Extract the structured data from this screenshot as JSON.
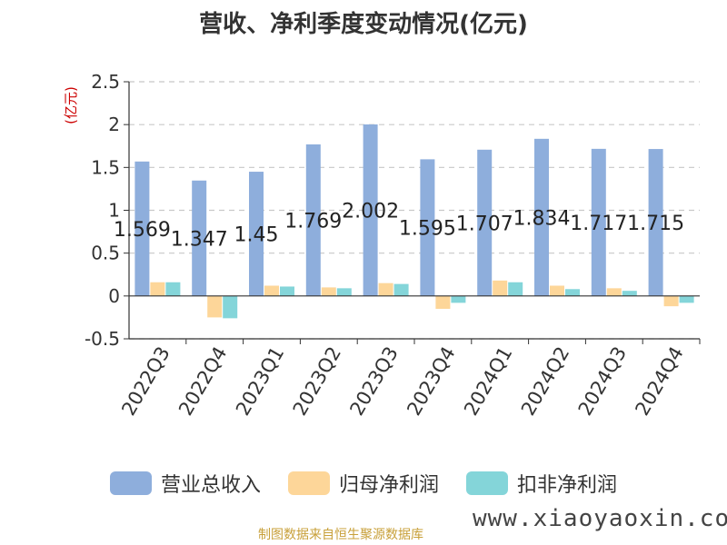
{
  "chart_data": {
    "type": "bar",
    "title": "营收、净利季度变动情况(亿元)",
    "ylabel": "(亿元)",
    "ylim": [
      -0.5,
      2.5
    ],
    "yticks": [
      2.5,
      2,
      1.5,
      1,
      0.5,
      0,
      -0.5
    ],
    "ytick_labels": [
      "2.5",
      "2",
      "1.5",
      "1",
      "0.5",
      "0",
      "-0.5"
    ],
    "grid": true,
    "legend_position": "bottom",
    "categories": [
      "2022Q3",
      "2022Q4",
      "2023Q1",
      "2023Q2",
      "2023Q3",
      "2023Q4",
      "2024Q1",
      "2024Q2",
      "2024Q3",
      "2024Q4"
    ],
    "series": [
      {
        "name": "营业总收入",
        "color": "#8eaedc",
        "values": [
          1.569,
          1.347,
          1.45,
          1.769,
          2.002,
          1.595,
          1.707,
          1.834,
          1.717,
          1.715
        ],
        "labels": [
          "1.569",
          "1.347",
          "1.45",
          "1.769",
          "2.002",
          "1.595",
          "1.707",
          "1.834",
          "1.717",
          "1.715"
        ]
      },
      {
        "name": "归母净利润",
        "color": "#fdd699",
        "values": [
          0.16,
          -0.25,
          0.12,
          0.1,
          0.15,
          -0.15,
          0.18,
          0.12,
          0.09,
          -0.12
        ]
      },
      {
        "name": "扣非净利润",
        "color": "#84d5d9",
        "values": [
          0.16,
          -0.26,
          0.11,
          0.09,
          0.14,
          -0.08,
          0.16,
          0.08,
          0.06,
          -0.08
        ]
      }
    ]
  },
  "footer": {
    "source": "制图数据来自恒生聚源数据库",
    "watermark": "www.xiaoyaoxin.com"
  }
}
